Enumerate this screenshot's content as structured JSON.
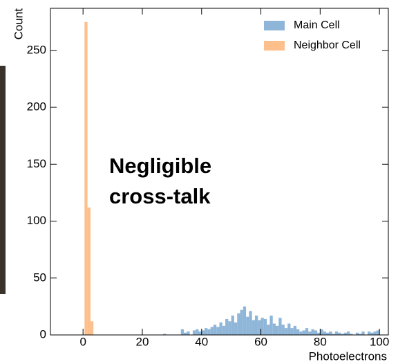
{
  "chart_data": {
    "type": "histogram",
    "x_label": "Photoelectrons",
    "y_label": "Count",
    "annotation_lines": [
      "Negligible",
      "cross-talk"
    ],
    "xlim": [
      -11,
      103
    ],
    "ylim": [
      0,
      287
    ],
    "xticks": [
      0,
      20,
      40,
      60,
      80,
      100
    ],
    "yticks": [
      0,
      50,
      100,
      150,
      200,
      250
    ],
    "legend": "upper right",
    "series": [
      {
        "name": "Main Cell",
        "color": "#8fb6d8",
        "bins": [
          27,
          28,
          29,
          30,
          31,
          32,
          33,
          34,
          35,
          36,
          37,
          38,
          39,
          40,
          41,
          42,
          43,
          44,
          45,
          46,
          47,
          48,
          49,
          50,
          51,
          52,
          53,
          54,
          55,
          56,
          57,
          58,
          59,
          60,
          61,
          62,
          63,
          64,
          65,
          66,
          67,
          68,
          69,
          70,
          71,
          72,
          73,
          74,
          75,
          76,
          77,
          78,
          79,
          80,
          81,
          82,
          83,
          84,
          85,
          86,
          87,
          88,
          89,
          90,
          91,
          92,
          93,
          94,
          95,
          96,
          97,
          98,
          99,
          100
        ],
        "values": [
          1,
          0,
          0,
          0,
          0,
          0,
          5,
          2,
          3,
          0,
          4,
          5,
          3,
          4,
          6,
          5,
          7,
          9,
          7,
          11,
          8,
          14,
          12,
          17,
          11,
          19,
          22,
          25,
          16,
          21,
          13,
          17,
          13,
          15,
          14,
          9,
          17,
          10,
          8,
          15,
          9,
          6,
          10,
          6,
          8,
          5,
          3,
          4,
          6,
          3,
          5,
          4,
          2,
          5,
          3,
          2,
          3,
          1,
          3,
          2,
          1,
          2,
          3,
          1,
          0,
          2,
          1,
          3,
          0,
          3,
          2,
          3,
          4
        ]
      },
      {
        "name": "Neighbor Cell",
        "color": "#fdbf8c",
        "bins": [
          0.5,
          1.5,
          2.5,
          3.5
        ],
        "values": [
          275,
          112,
          12
        ]
      }
    ]
  }
}
